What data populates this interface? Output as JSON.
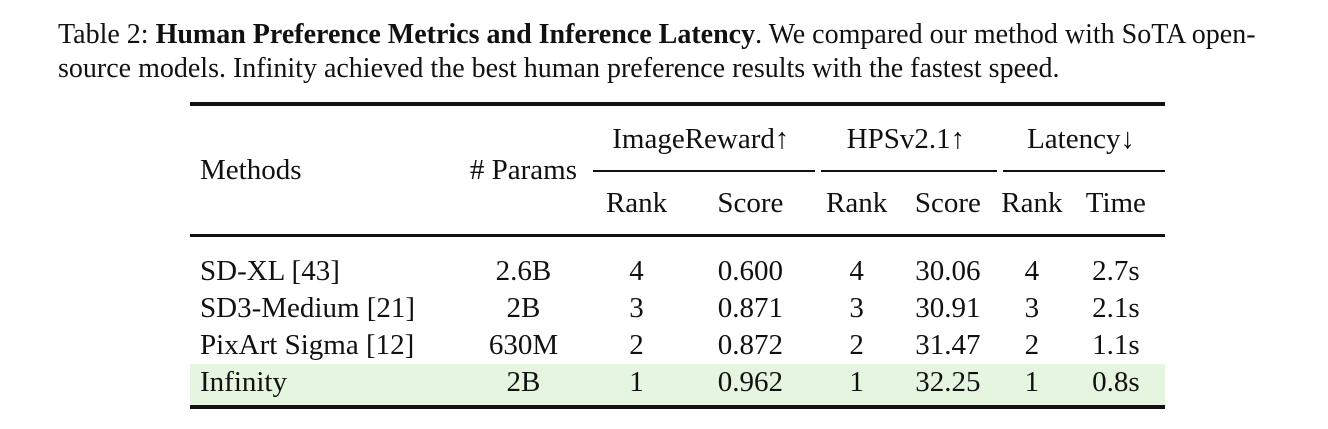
{
  "caption": {
    "label": "Table 2:",
    "title": "Human Preference Metrics and Inference Latency",
    "body": ". We compared our method with SoTA open-source models. Infinity achieved the best human preference results with the fastest speed."
  },
  "table": {
    "headers": {
      "methods": "Methods",
      "params": "# Params",
      "imagereward": "ImageReward↑",
      "hps": "HPSv2.1↑",
      "latency": "Latency↓",
      "rank": "Rank",
      "score": "Score",
      "time": "Time"
    },
    "rows": [
      {
        "method": "SD-XL [43]",
        "params": "2.6B",
        "ir_rank": "4",
        "ir_score": "0.600",
        "hps_rank": "4",
        "hps_score": "30.06",
        "lat_rank": "4",
        "lat_time": "2.7s"
      },
      {
        "method": "SD3-Medium [21]",
        "params": "2B",
        "ir_rank": "3",
        "ir_score": "0.871",
        "hps_rank": "3",
        "hps_score": "30.91",
        "lat_rank": "3",
        "lat_time": "2.1s"
      },
      {
        "method": "PixArt Sigma [12]",
        "params": "630M",
        "ir_rank": "2",
        "ir_score": "0.872",
        "hps_rank": "2",
        "hps_score": "31.47",
        "lat_rank": "2",
        "lat_time": "1.1s"
      },
      {
        "method": "Infinity",
        "params": "2B",
        "ir_rank": "1",
        "ir_score": "0.962",
        "hps_rank": "1",
        "hps_score": "32.25",
        "lat_rank": "1",
        "lat_time": "0.8s"
      }
    ],
    "highlight_color": "#e6f5e0"
  }
}
